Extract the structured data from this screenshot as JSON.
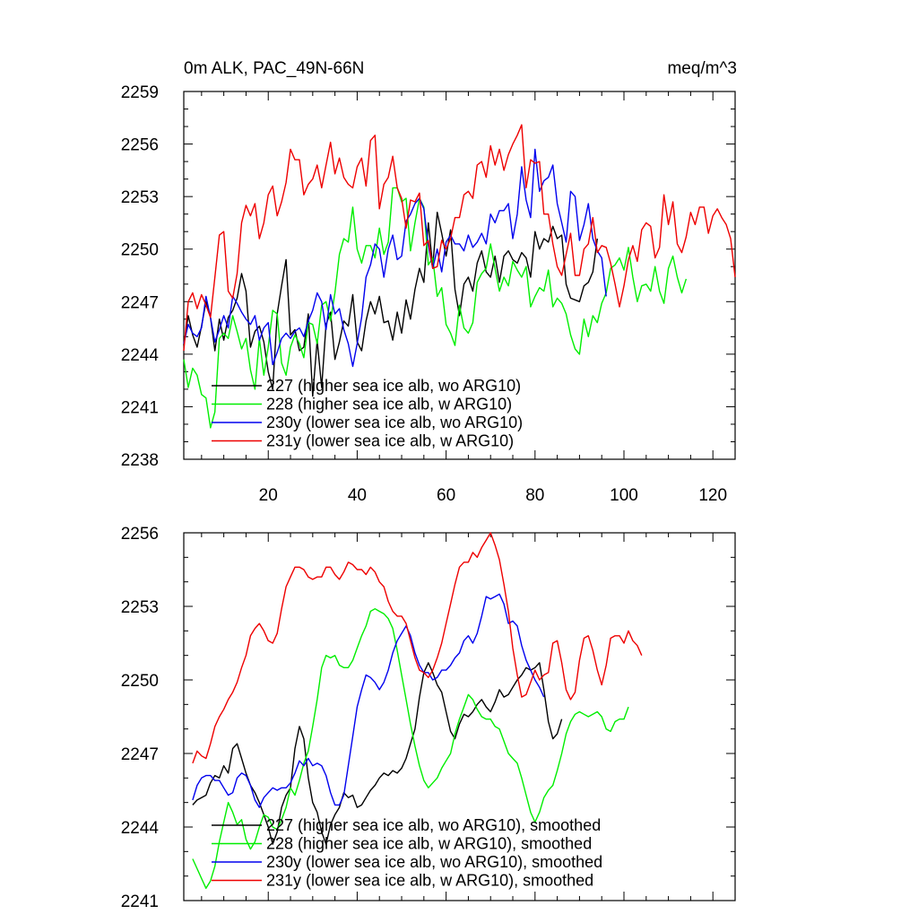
{
  "figure": {
    "title_left": "0m ALK, PAC_49N-66N",
    "title_right": "meq/m^3"
  },
  "colors": {
    "227": "#000000",
    "228": "#00ee00",
    "230y": "#0000ee",
    "231y": "#ee0000"
  },
  "chart_data": [
    {
      "type": "line",
      "title": "0m ALK, PAC_49N-66N",
      "units": "meq/m^3",
      "xlim": [
        1,
        125
      ],
      "ylim": [
        2238,
        2259
      ],
      "x_ticks": [
        20,
        40,
        60,
        80,
        100,
        120
      ],
      "y_ticks": [
        2238,
        2241,
        2244,
        2247,
        2250,
        2253,
        2256,
        2259
      ],
      "legend_position": "bottom-left",
      "series": [
        {
          "name": "227 (higher sea ice alb, wo ARG10)",
          "color_key": "227",
          "x_start": 1,
          "y": [
            2244.5,
            2246.2,
            2245.1,
            2244.4,
            2245.6,
            2247.0,
            2246.1,
            2244.2,
            2246.0,
            2244.8,
            2246.1,
            2246.5,
            2247.2,
            2248.6,
            2247.6,
            2244.4,
            2245.3,
            2245.6,
            2244.7,
            2243.0,
            2242.0,
            2246.3,
            2247.9,
            2249.4,
            2245.1,
            2245.4,
            2244.2,
            2244.4,
            2246.3,
            2241.6,
            2244.8,
            2242.1,
            2245.7,
            2246.4,
            2243.7,
            2244.7,
            2245.9,
            2245.6,
            2247.4,
            2244.7,
            2244.2,
            2245.9,
            2247.0,
            2246.3,
            2247.3,
            2245.8,
            2245.9,
            2244.8,
            2246.4,
            2245.2,
            2247.1,
            2246.0,
            2247.7,
            2248.9,
            2248.1,
            2251.5,
            2249.0,
            2252.1,
            2250.9,
            2249.6,
            2251.1,
            2247.7,
            2246.2,
            2248.0,
            2248.4,
            2247.6,
            2249.2,
            2249.9,
            2248.7,
            2248.4,
            2249.6,
            2248.1,
            2249.6,
            2249.9,
            2249.4,
            2249.2,
            2249.8,
            2249.5,
            2248.4,
            2251.0,
            2250.0,
            2250.6,
            2250.4,
            2251.3,
            2250.6,
            2250.8,
            2248.0,
            2247.2,
            2247.1,
            2247.0,
            2247.9,
            2248.1,
            2248.7,
            2250.6
          ]
        },
        {
          "name": "228 (higher sea ice alb, w ARG10)",
          "color_key": "228",
          "x_start": 1,
          "y": [
            2243.7,
            2242.1,
            2243.2,
            2242.8,
            2241.7,
            2241.5,
            2239.8,
            2240.7,
            2244.9,
            2245.2,
            2244.9,
            2246.2,
            2245.3,
            2244.3,
            2244.9,
            2243.1,
            2242.0,
            2244.9,
            2242.8,
            2244.4,
            2246.5,
            2246.3,
            2243.5,
            2242.8,
            2244.4,
            2245.1,
            2244.6,
            2243.8,
            2245.8,
            2245.7,
            2244.6,
            2246.8,
            2247.0,
            2245.9,
            2247.5,
            2249.7,
            2250.6,
            2250.4,
            2252.4,
            2250.0,
            2249.2,
            2250.2,
            2250.2,
            2249.5,
            2251.2,
            2249.7,
            2250.4,
            2253.5,
            2253.5,
            2252.7,
            2252.9,
            2249.9,
            2251.5,
            2252.9,
            2252.4,
            2249.1,
            2249.5,
            2247.3,
            2247.8,
            2245.7,
            2245.2,
            2244.5,
            2246.8,
            2245.5,
            2245.2,
            2245.8,
            2248.1,
            2248.6,
            2248.9,
            2250.3,
            2248.9,
            2247.6,
            2248.4,
            2247.9,
            2249.3,
            2248.8,
            2248.4,
            2249.0,
            2246.7,
            2247.3,
            2247.8,
            2247.6,
            2248.8,
            2246.7,
            2247.2,
            2246.9,
            2246.3,
            2245.1,
            2244.3,
            2244.0,
            2246.0,
            2245.0,
            2246.2,
            2245.8,
            2246.9,
            2247.5,
            2248.9,
            2249.1,
            2249.5,
            2248.8,
            2250.1,
            2248.4,
            2247.0,
            2247.9,
            2248.0,
            2247.6,
            2249.0,
            2247.6,
            2246.9,
            2248.9,
            2249.6,
            2248.4,
            2247.5,
            2248.3
          ]
        },
        {
          "name": "230y (lower sea ice alb, wo ARG10)",
          "color_key": "230y",
          "x_start": 1,
          "y": [
            2244.6,
            2245.7,
            2245.2,
            2245.0,
            2245.5,
            2247.3,
            2246.1,
            2244.7,
            2245.4,
            2246.2,
            2245.5,
            2247.3,
            2246.9,
            2246.4,
            2246.0,
            2245.7,
            2246.2,
            2244.8,
            2245.5,
            2245.8,
            2243.4,
            2244.1,
            2244.9,
            2245.2,
            2244.9,
            2245.3,
            2245.5,
            2245.0,
            2245.9,
            2246.5,
            2247.5,
            2247.0,
            2245.4,
            2247.4,
            2246.3,
            2246.6,
            2245.4,
            2244.6,
            2243.3,
            2244.6,
            2246.1,
            2248.4,
            2249.1,
            2250.3,
            2250.0,
            2248.4,
            2250.0,
            2250.8,
            2249.4,
            2249.6,
            2251.6,
            2252.0,
            2252.6,
            2252.9,
            2252.3,
            2250.2,
            2248.9,
            2250.0,
            2248.7,
            2250.4,
            2250.8,
            2250.3,
            2250.3,
            2249.9,
            2250.8,
            2250.1,
            2250.4,
            2250.9,
            2250.3,
            2252.0,
            2251.5,
            2252.2,
            2252.2,
            2252.6,
            2250.6,
            2252.0,
            2254.7,
            2252.8,
            2251.8,
            2255.7,
            2253.3,
            2253.9,
            2254.1,
            2254.8,
            2252.6,
            2251.5,
            2250.4,
            2253.3,
            2253.0,
            2250.5,
            2251.4,
            2252.6,
            2250.6,
            2249.9,
            2249.5,
            2247.3
          ]
        },
        {
          "name": "231y (lower sea ice alb, w ARG10)",
          "color_key": "231y",
          "x_start": 1,
          "y": [
            2244.2,
            2247.0,
            2247.5,
            2246.6,
            2247.4,
            2246.8,
            2246.1,
            2248.4,
            2250.8,
            2251.0,
            2247.6,
            2247.2,
            2248.6,
            2251.5,
            2252.5,
            2251.9,
            2252.6,
            2250.6,
            2251.5,
            2253.1,
            2253.6,
            2251.9,
            2252.7,
            2253.8,
            2255.7,
            2255.1,
            2255.1,
            2253.1,
            2253.7,
            2254.0,
            2254.8,
            2253.5,
            2254.8,
            2256.1,
            2254.3,
            2255.2,
            2254.1,
            2253.7,
            2253.5,
            2254.7,
            2255.2,
            2253.6,
            2256.2,
            2256.5,
            2252.3,
            2253.7,
            2254.1,
            2255.3,
            2253.5,
            2252.9,
            2251.2,
            2252.8,
            2252.7,
            2253.2,
            2250.2,
            2250.5,
            2248.9,
            2249.0,
            2250.5,
            2250.0,
            2250.6,
            2251.8,
            2251.8,
            2253.1,
            2253.3,
            2252.9,
            2254.8,
            2255.0,
            2254.1,
            2255.9,
            2254.8,
            2255.7,
            2254.5,
            2255.4,
            2256.0,
            2256.5,
            2257.1,
            2253.5,
            2255.1,
            2254.9,
            2255.0,
            2252.0,
            2252.0,
            2250.3,
            2249.0,
            2248.5,
            2249.7,
            2250.9,
            2248.5,
            2248.5,
            2250.0,
            2250.3,
            2251.8,
            2249.8,
            2250.2,
            2250.1,
            2249.2,
            2248.0,
            2246.7,
            2247.9,
            2249.4,
            2250.2,
            2249.3,
            2251.1,
            2251.5,
            2251.3,
            2249.5,
            2250.1,
            2253.1,
            2251.4,
            2252.7,
            2250.3,
            2249.8,
            2250.7,
            2252.1,
            2251.4,
            2252.4,
            2252.4,
            2250.9,
            2251.9,
            2252.3,
            2251.8,
            2251.4,
            2250.6,
            2248.4
          ]
        }
      ]
    },
    {
      "type": "line",
      "xlim": [
        1,
        125
      ],
      "ylim": [
        2241,
        2256
      ],
      "x_ticks": [
        20,
        40,
        60,
        80,
        100,
        120
      ],
      "y_ticks": [
        2241,
        2244,
        2247,
        2250,
        2253,
        2256
      ],
      "legend_position": "bottom-left",
      "series": [
        {
          "name": "227 (higher sea ice alb, wo ARG10), smoothed",
          "color_key": "227",
          "x_start": 3,
          "y": [
            2244.9,
            2245.1,
            2245.2,
            2245.3,
            2245.8,
            2246.1,
            2246.0,
            2246.5,
            2246.2,
            2247.2,
            2247.4,
            2246.8,
            2246.2,
            2245.7,
            2245.4,
            2245.0,
            2244.5,
            2244.0,
            2243.3,
            2243.8,
            2244.8,
            2245.3,
            2245.6,
            2247.2,
            2248.1,
            2247.6,
            2246.0,
            2245.0,
            2244.6,
            2243.8,
            2243.3,
            2244.1,
            2244.5,
            2244.8,
            2245.4,
            2245.2,
            2245.3,
            2244.8,
            2244.9,
            2245.2,
            2245.5,
            2245.7,
            2246.0,
            2246.2,
            2246.1,
            2246.3,
            2246.2,
            2246.4,
            2246.8,
            2247.4,
            2248.0,
            2249.3,
            2250.3,
            2250.7,
            2250.3,
            2249.8,
            2249.5,
            2248.7,
            2247.9,
            2247.6,
            2248.2,
            2248.6,
            2248.5,
            2248.7,
            2249.0,
            2249.2,
            2248.9,
            2248.7,
            2249.1,
            2249.6,
            2249.3,
            2249.4,
            2249.7,
            2250.0,
            2250.2,
            2250.5,
            2250.4,
            2250.5,
            2250.7,
            2249.6,
            2248.3,
            2247.6,
            2247.8,
            2248.4
          ]
        },
        {
          "name": "228 (higher sea ice alb, w ARG10), smoothed",
          "color_key": "228",
          "x_start": 3,
          "y": [
            2242.7,
            2242.3,
            2241.9,
            2241.5,
            2241.8,
            2242.4,
            2243.4,
            2244.2,
            2245.0,
            2244.6,
            2244.1,
            2244.3,
            2243.5,
            2243.1,
            2243.4,
            2244.0,
            2244.5,
            2244.4,
            2244.0,
            2243.9,
            2244.3,
            2244.8,
            2245.6,
            2245.3,
            2245.9,
            2246.6,
            2247.1,
            2248.1,
            2249.2,
            2250.5,
            2251.0,
            2250.9,
            2251.0,
            2250.6,
            2250.5,
            2250.5,
            2250.8,
            2251.3,
            2251.8,
            2252.2,
            2252.8,
            2252.9,
            2252.8,
            2252.7,
            2252.5,
            2252.1,
            2251.2,
            2250.2,
            2249.2,
            2248.2,
            2247.3,
            2246.5,
            2245.9,
            2245.6,
            2245.8,
            2246.0,
            2246.4,
            2246.7,
            2247.0,
            2247.8,
            2248.4,
            2248.9,
            2249.4,
            2249.2,
            2248.8,
            2248.5,
            2248.4,
            2248.4,
            2248.1,
            2248.0,
            2247.5,
            2247.0,
            2246.8,
            2246.6,
            2246.0,
            2245.3,
            2244.6,
            2244.2,
            2244.6,
            2245.2,
            2245.5,
            2245.7,
            2246.3,
            2247.0,
            2247.8,
            2248.3,
            2248.6,
            2248.7,
            2248.6,
            2248.5,
            2248.6,
            2248.7,
            2248.5,
            2248.0,
            2247.9,
            2248.3,
            2248.4,
            2248.4,
            2248.9
          ]
        },
        {
          "name": "230y (lower sea ice alb, wo ARG10), smoothed",
          "color_key": "230y",
          "x_start": 3,
          "y": [
            2245.1,
            2245.7,
            2246.0,
            2246.1,
            2246.1,
            2245.9,
            2245.9,
            2245.6,
            2245.3,
            2245.4,
            2246.0,
            2246.2,
            2246.1,
            2245.7,
            2245.1,
            2244.8,
            2245.2,
            2245.4,
            2245.6,
            2245.5,
            2245.6,
            2245.6,
            2245.8,
            2246.2,
            2246.7,
            2246.5,
            2246.8,
            2246.5,
            2246.6,
            2246.5,
            2246.1,
            2245.4,
            2244.9,
            2244.9,
            2245.3,
            2246.5,
            2247.7,
            2248.9,
            2249.6,
            2250.2,
            2250.1,
            2249.9,
            2249.6,
            2249.9,
            2250.4,
            2251.1,
            2251.6,
            2251.9,
            2252.2,
            2251.8,
            2251.1,
            2250.6,
            2250.3,
            2250.3,
            2250.0,
            2250.1,
            2250.4,
            2250.4,
            2250.6,
            2250.9,
            2251.1,
            2251.6,
            2251.8,
            2251.5,
            2251.9,
            2252.6,
            2253.4,
            2253.3,
            2253.4,
            2253.5,
            2253.1,
            2252.3,
            2252.4,
            2252.2,
            2251.4,
            2250.8,
            2250.4,
            2250.0,
            2249.7,
            2249.3
          ]
        },
        {
          "name": "231y (lower sea ice alb, w ARG10), smoothed",
          "color_key": "231y",
          "x_start": 3,
          "y": [
            2246.6,
            2247.1,
            2246.9,
            2246.8,
            2247.4,
            2248.1,
            2248.5,
            2248.8,
            2249.2,
            2249.5,
            2249.9,
            2250.5,
            2251.0,
            2251.8,
            2252.1,
            2252.3,
            2252.0,
            2251.6,
            2251.5,
            2251.9,
            2252.9,
            2253.8,
            2254.2,
            2254.6,
            2254.6,
            2254.5,
            2254.2,
            2254.1,
            2254.2,
            2254.2,
            2254.6,
            2254.6,
            2254.3,
            2254.1,
            2254.4,
            2254.8,
            2254.7,
            2254.5,
            2254.5,
            2254.3,
            2254.6,
            2254.4,
            2254.0,
            2253.8,
            2253.2,
            2252.8,
            2252.6,
            2252.6,
            2252.3,
            2251.6,
            2250.9,
            2250.4,
            2250.3,
            2250.1,
            2250.4,
            2250.9,
            2251.5,
            2252.3,
            2253.1,
            2253.9,
            2254.6,
            2254.8,
            2254.8,
            2255.2,
            2255.0,
            2255.4,
            2255.7,
            2256.0,
            2255.5,
            2254.9,
            2253.9,
            2252.8,
            2251.3,
            2250.2,
            2249.3,
            2249.4,
            2249.9,
            2250.4,
            2250.0,
            2250.2,
            2250.3,
            2251.5,
            2251.6,
            2250.7,
            2249.6,
            2249.2,
            2249.5,
            2250.8,
            2251.7,
            2251.8,
            2251.2,
            2250.4,
            2249.8,
            2250.6,
            2251.7,
            2251.8,
            2251.8,
            2251.5,
            2252.0,
            2251.6,
            2251.4,
            2251.0
          ]
        }
      ]
    }
  ]
}
